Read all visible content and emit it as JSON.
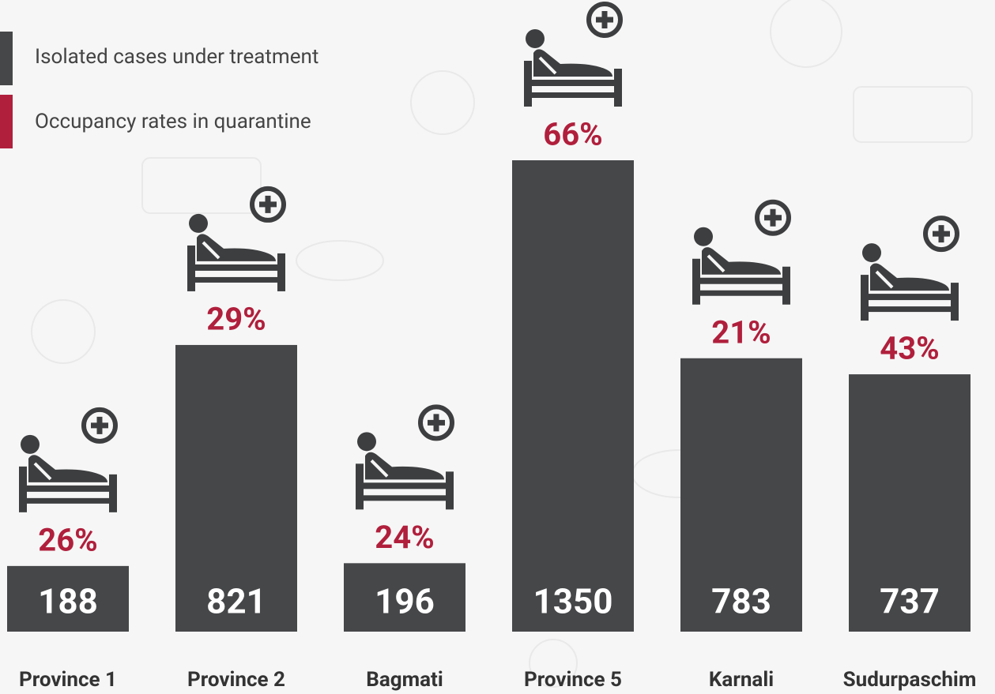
{
  "chart_data": {
    "type": "bar",
    "categories": [
      "Province 1",
      "Province 2",
      "Bagmati",
      "Province 5",
      "Karnali",
      "Sudurpaschim"
    ],
    "series": [
      {
        "name": "Isolated cases under treatment",
        "color": "#464749",
        "values": [
          188,
          821,
          196,
          1350,
          783,
          737
        ]
      },
      {
        "name": "Occupancy rates in quarantine",
        "color": "#b01f3c",
        "values": [
          26,
          29,
          24,
          66,
          21,
          43
        ],
        "value_labels": [
          "26%",
          "29%",
          "24%",
          "66%",
          "21%",
          "43%"
        ]
      }
    ]
  }
}
